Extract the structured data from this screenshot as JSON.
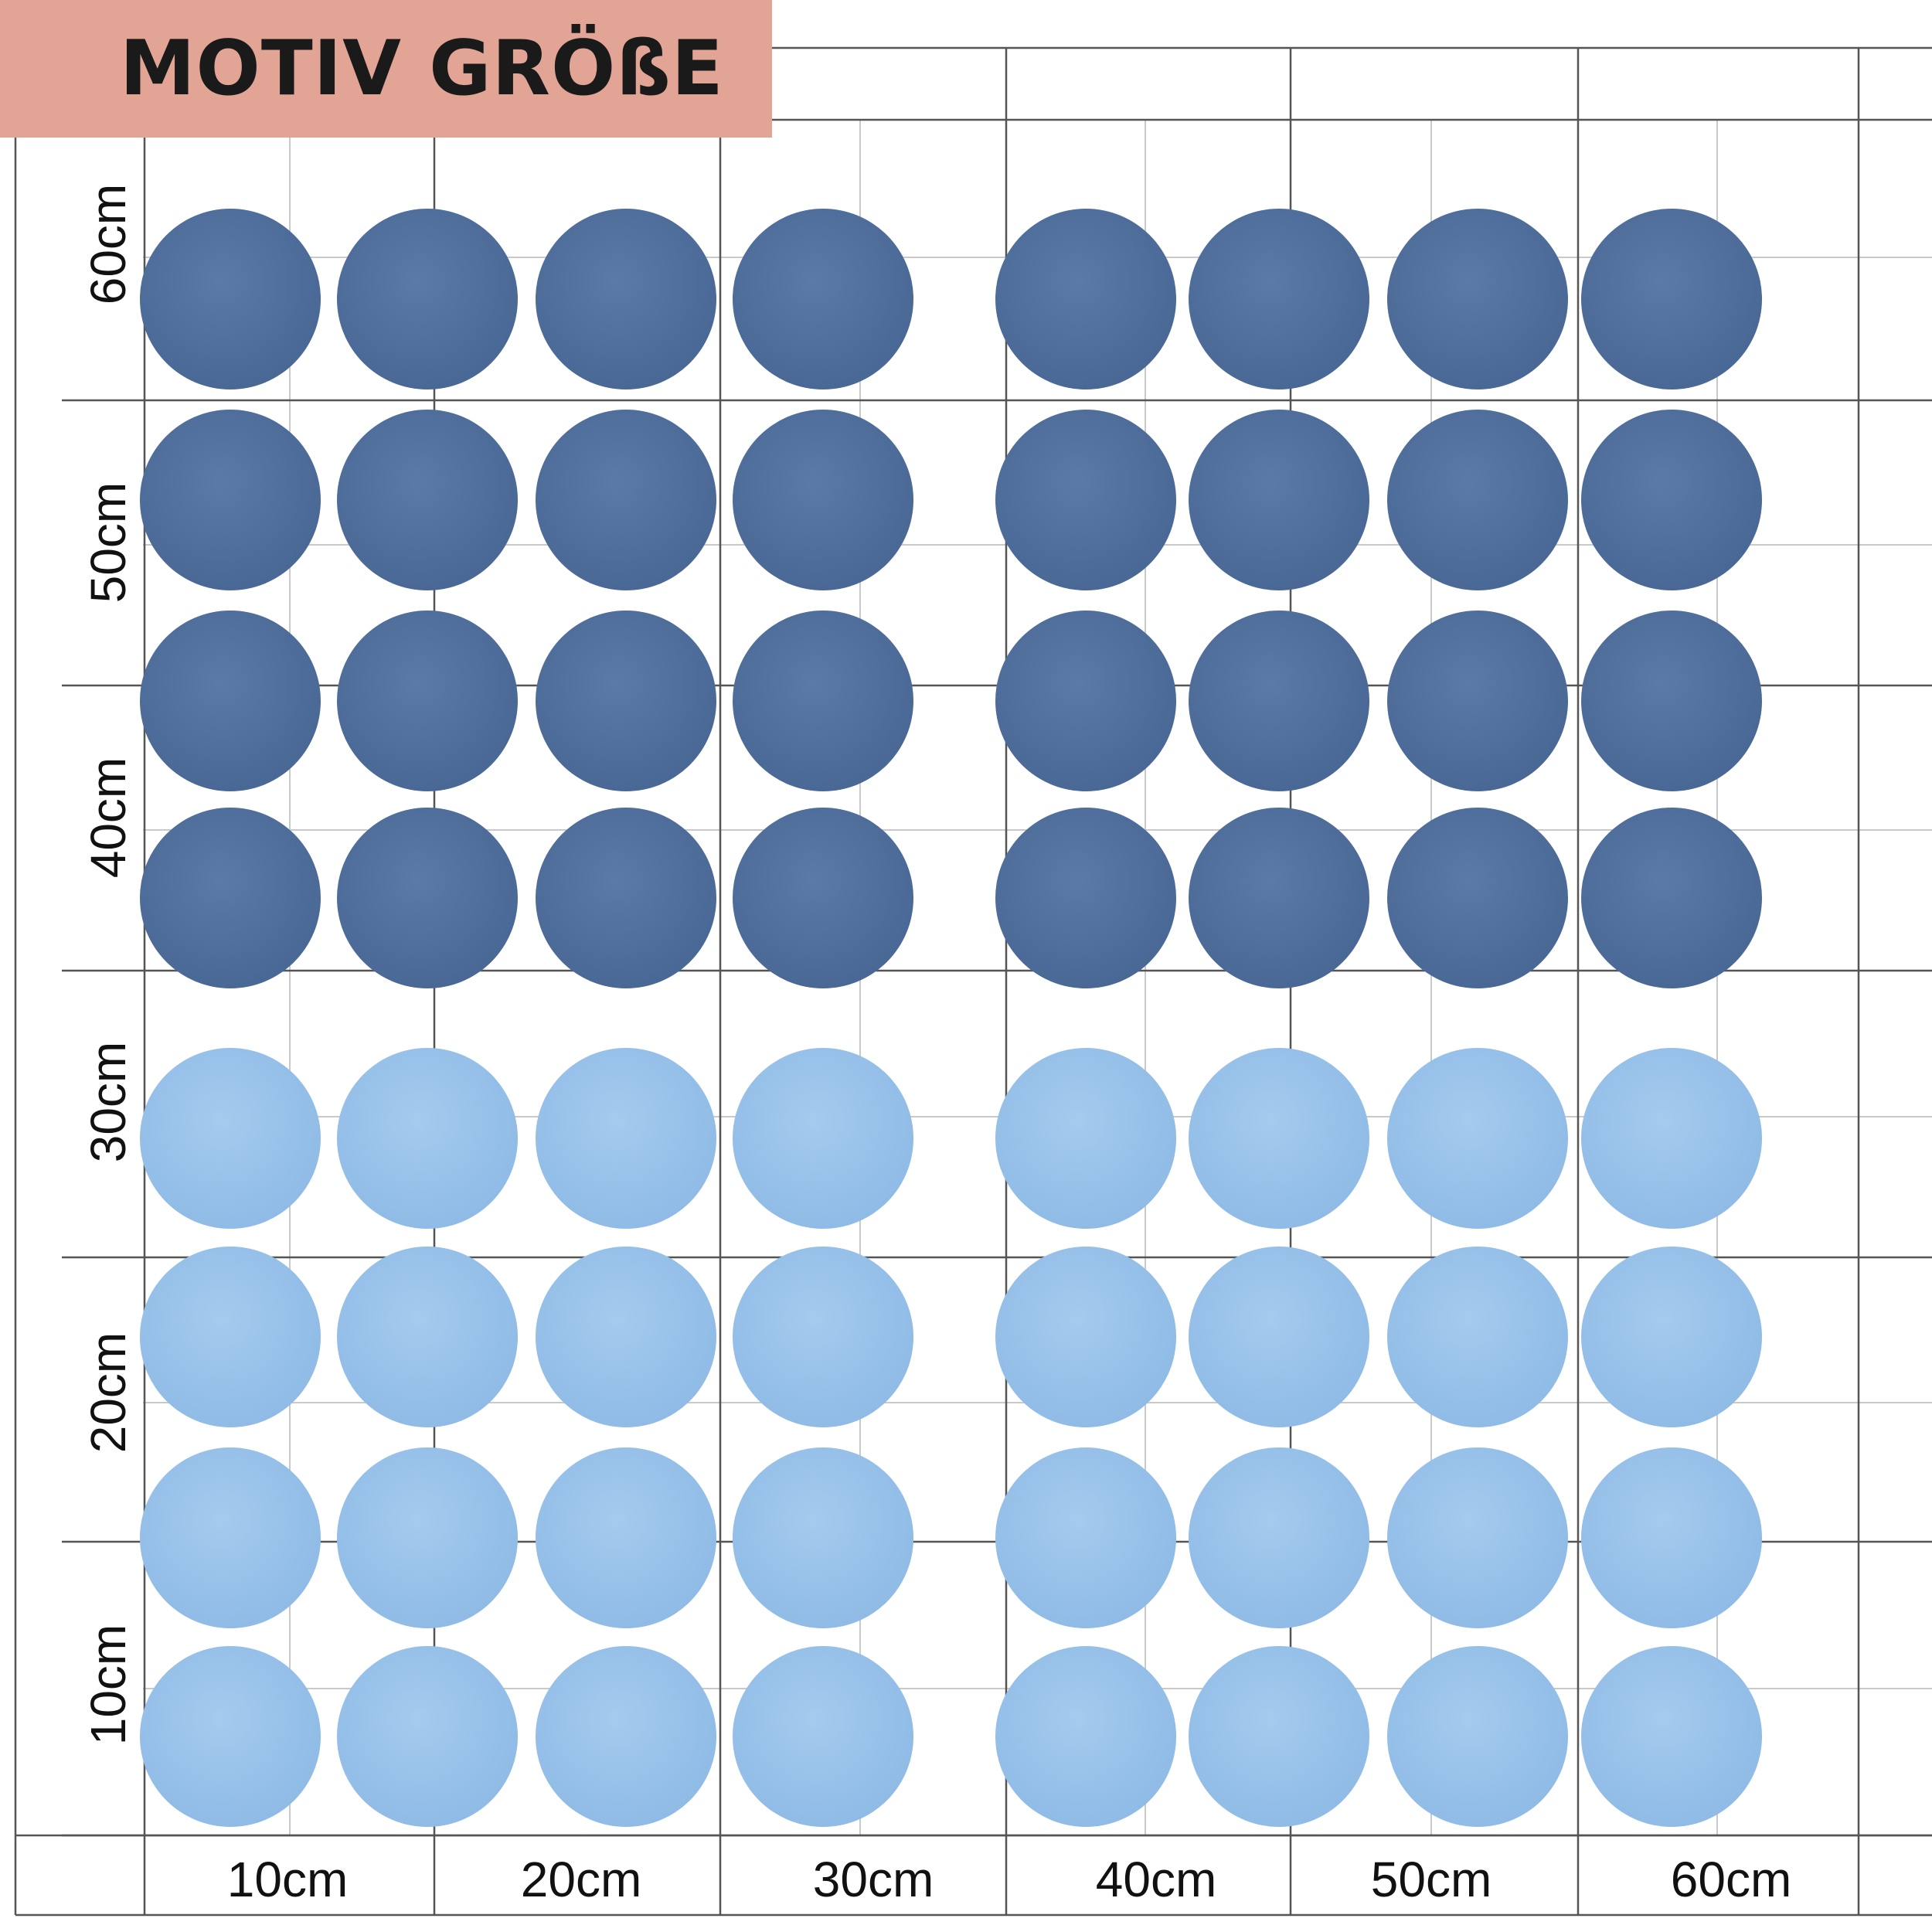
{
  "title": "MOTIV GRÖßE",
  "x_axis_labels": [
    "10cm",
    "20cm",
    "30cm",
    "40cm",
    "50cm",
    "60cm"
  ],
  "y_axis_labels": [
    "60cm",
    "50cm",
    "40cm",
    "30cm",
    "20cm",
    "10cm"
  ],
  "dots": {
    "columns": 8,
    "dark_rows": 4,
    "light_rows": 4,
    "dark_color": "#5b7aa6",
    "dark_edge_color": "#4a6895",
    "light_color": "#a5cbee",
    "light_edge_color": "#8fbbe6"
  },
  "colors": {
    "banner": "#e2a595",
    "grid_major": "#555555",
    "grid_minor": "#c9c9c9"
  }
}
